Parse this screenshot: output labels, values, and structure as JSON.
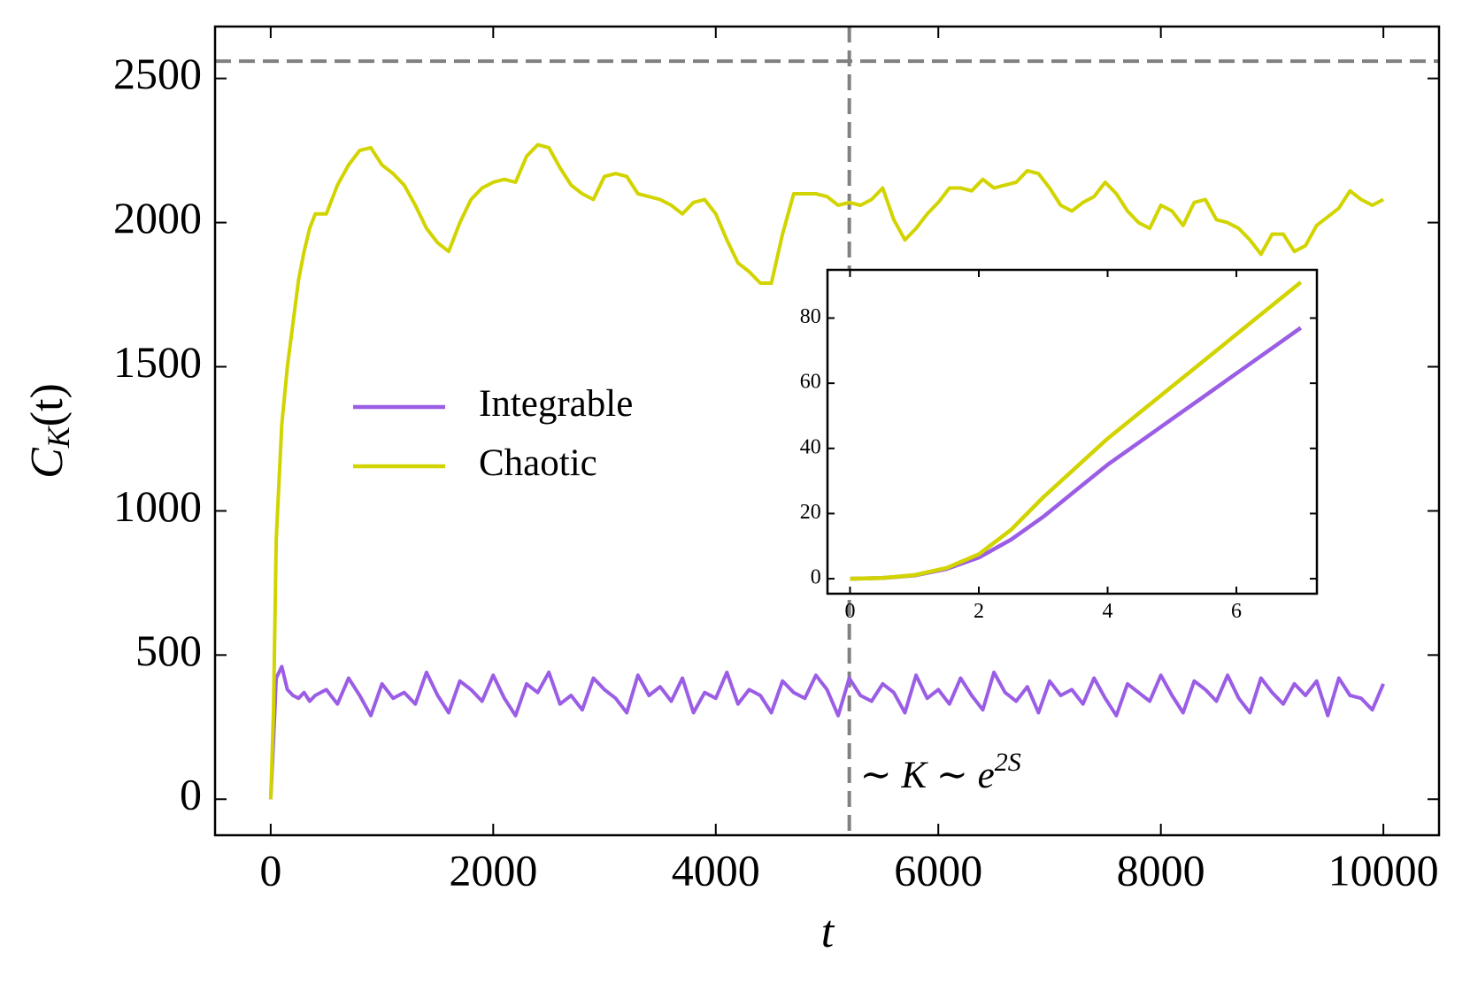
{
  "chart_data": [
    {
      "type": "line",
      "xlabel": "t",
      "ylabel": {
        "base": "C",
        "sub": "K",
        "rest": "(t)"
      },
      "annotation": {
        "text": "∼ K ∼ e",
        "superscript": "2S"
      },
      "legend": "center left",
      "hline": 2560,
      "vline": 5200,
      "ref_color": "#808080",
      "xlim": [
        -500,
        10500
      ],
      "ylim": [
        -125,
        2680
      ],
      "xticks": [
        0,
        2000,
        4000,
        6000,
        8000,
        10000
      ],
      "yticks": [
        0,
        500,
        1000,
        1500,
        2000,
        2500
      ],
      "x": [
        0,
        25,
        50,
        100,
        150,
        200,
        250,
        300,
        350,
        400,
        500,
        600,
        700,
        800,
        900,
        1000,
        1100,
        1200,
        1300,
        1400,
        1500,
        1600,
        1700,
        1800,
        1900,
        2000,
        2100,
        2200,
        2300,
        2400,
        2500,
        2600,
        2700,
        2800,
        2900,
        3000,
        3100,
        3200,
        3300,
        3400,
        3500,
        3600,
        3700,
        3800,
        3900,
        4000,
        4100,
        4200,
        4300,
        4400,
        4500,
        4600,
        4700,
        4800,
        4900,
        5000,
        5100,
        5200,
        5300,
        5400,
        5500,
        5600,
        5700,
        5800,
        5900,
        6000,
        6100,
        6200,
        6300,
        6400,
        6500,
        6600,
        6700,
        6800,
        6900,
        7000,
        7100,
        7200,
        7300,
        7400,
        7500,
        7600,
        7700,
        7800,
        7900,
        8000,
        8100,
        8200,
        8300,
        8400,
        8500,
        8600,
        8700,
        8800,
        8900,
        9000,
        9100,
        9200,
        9300,
        9400,
        9500,
        9600,
        9700,
        9800,
        9900,
        10000
      ],
      "series": [
        {
          "name": "Integrable",
          "color": "#9b5de5",
          "values": [
            0,
            200,
            420,
            460,
            380,
            360,
            350,
            370,
            340,
            360,
            380,
            330,
            420,
            360,
            290,
            400,
            350,
            370,
            330,
            440,
            360,
            300,
            410,
            380,
            340,
            430,
            350,
            290,
            400,
            370,
            440,
            330,
            360,
            310,
            420,
            380,
            350,
            300,
            430,
            360,
            390,
            340,
            420,
            300,
            370,
            350,
            440,
            330,
            380,
            360,
            300,
            410,
            370,
            350,
            430,
            380,
            290,
            420,
            360,
            340,
            400,
            370,
            300,
            430,
            350,
            380,
            330,
            420,
            360,
            310,
            440,
            370,
            340,
            390,
            300,
            410,
            360,
            380,
            330,
            420,
            350,
            290,
            400,
            370,
            340,
            430,
            360,
            300,
            410,
            380,
            340,
            430,
            350,
            300,
            420,
            370,
            330,
            400,
            360,
            410,
            290,
            420,
            360,
            350,
            310,
            400
          ]
        },
        {
          "name": "Chaotic",
          "color": "#d2d400",
          "values": [
            0,
            300,
            900,
            1300,
            1500,
            1650,
            1800,
            1900,
            1980,
            2030,
            2030,
            2130,
            2200,
            2250,
            2260,
            2200,
            2170,
            2130,
            2060,
            1980,
            1930,
            1900,
            2000,
            2080,
            2120,
            2140,
            2150,
            2140,
            2230,
            2270,
            2260,
            2190,
            2130,
            2100,
            2080,
            2160,
            2170,
            2160,
            2100,
            2090,
            2080,
            2060,
            2030,
            2070,
            2080,
            2030,
            1940,
            1860,
            1830,
            1790,
            1790,
            1960,
            2100,
            2100,
            2100,
            2090,
            2060,
            2070,
            2060,
            2080,
            2120,
            2010,
            1940,
            1980,
            2030,
            2070,
            2120,
            2120,
            2110,
            2150,
            2120,
            2130,
            2140,
            2180,
            2170,
            2120,
            2060,
            2040,
            2070,
            2090,
            2140,
            2100,
            2040,
            2000,
            1980,
            2060,
            2040,
            1990,
            2070,
            2080,
            2010,
            2000,
            1980,
            1940,
            1890,
            1960,
            1960,
            1900,
            1920,
            1990,
            2020,
            2050,
            2110,
            2080,
            2060,
            2080
          ]
        }
      ]
    },
    {
      "type": "line",
      "xlim": [
        -0.35,
        7.25
      ],
      "ylim": [
        -4.6,
        94.8
      ],
      "xticks": [
        0,
        2,
        4,
        6
      ],
      "yticks": [
        0,
        20,
        40,
        60,
        80
      ],
      "x": [
        0,
        0.5,
        1,
        1.5,
        2,
        2.5,
        3,
        3.5,
        4,
        4.5,
        5,
        5.5,
        6,
        6.5,
        7
      ],
      "series": [
        {
          "name": "Integrable",
          "color": "#9b5de5",
          "values": [
            0,
            0.2,
            1,
            3,
            6.5,
            12,
            19,
            27,
            35,
            42,
            49,
            56,
            63,
            70,
            77
          ]
        },
        {
          "name": "Chaotic",
          "color": "#d2d400",
          "values": [
            0,
            0.2,
            1.1,
            3.3,
            7.5,
            15,
            25,
            34,
            43,
            51,
            59,
            67,
            75,
            83,
            91
          ]
        }
      ]
    }
  ]
}
